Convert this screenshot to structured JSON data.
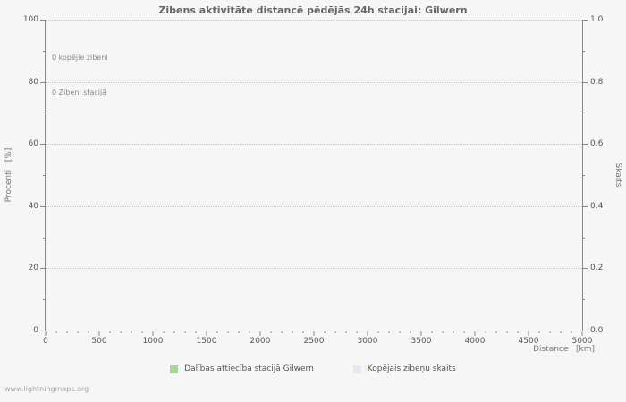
{
  "chart_data": {
    "type": "line",
    "title": "Zibens aktivitāte distancē pēdējās 24h stacijai: Gilwern",
    "xlabel": "Distance   [km]",
    "ylabel_left": "Procenti   [%]",
    "ylabel_right": "Skaits",
    "xlim": [
      0,
      5000
    ],
    "ylim_left": [
      0,
      100
    ],
    "ylim_right": [
      0.0,
      1.0
    ],
    "x_ticks": [
      0,
      500,
      1000,
      1500,
      2000,
      2500,
      3000,
      3500,
      4000,
      4500,
      5000
    ],
    "x_minor_step": 100,
    "x_major_step": 500,
    "y_ticks_left": [
      0,
      20,
      40,
      60,
      80,
      100
    ],
    "y_ticks_right": [
      "0.0",
      "0.2",
      "0.4",
      "0.6",
      "0.8",
      "1.0"
    ],
    "y_minor_step": 10,
    "y_major_step": 20,
    "grid": "horizontal-dotted",
    "legend_position": "bottom",
    "annotations": [
      "0 kopējie zibeni",
      "0 Zibeni stacijā"
    ],
    "series": [
      {
        "name": "Dalības attiecība stacijā Gilwern",
        "color": "#aad59a",
        "values": []
      },
      {
        "name": "Kopējais zibeņu skaits",
        "color": "#e6e6f7",
        "values": []
      }
    ]
  },
  "legend": {
    "items": [
      {
        "label": "Dalības attiecība stacijā Gilwern",
        "color": "#aad59a"
      },
      {
        "label": "Kopējais zibeņu skaits",
        "color": "#e6e6f7"
      }
    ]
  },
  "footer": {
    "watermark": "www.lightningmaps.org"
  }
}
